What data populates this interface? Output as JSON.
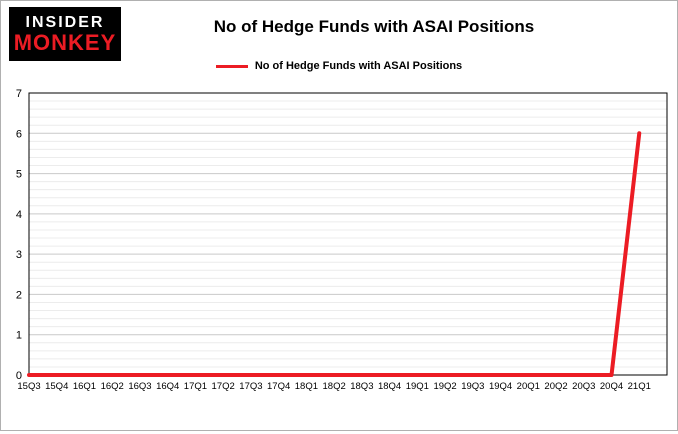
{
  "logo": {
    "line1": "INSIDER",
    "line2": "MONKEY"
  },
  "title": "No of Hedge Funds with ASAI Positions",
  "legend": {
    "label": "No of Hedge Funds with ASAI Positions",
    "color": "#ec1c24"
  },
  "chart_data": {
    "type": "line",
    "title": "No of Hedge Funds with ASAI Positions",
    "categories": [
      "15Q3",
      "15Q4",
      "16Q1",
      "16Q2",
      "16Q3",
      "16Q4",
      "17Q1",
      "17Q2",
      "17Q3",
      "17Q4",
      "18Q1",
      "18Q2",
      "18Q3",
      "18Q4",
      "19Q1",
      "19Q2",
      "19Q3",
      "19Q4",
      "20Q1",
      "20Q2",
      "20Q3",
      "20Q4",
      "21Q1"
    ],
    "series": [
      {
        "name": "No of Hedge Funds with ASAI Positions",
        "color": "#ec1c24",
        "values": [
          0,
          0,
          0,
          0,
          0,
          0,
          0,
          0,
          0,
          0,
          0,
          0,
          0,
          0,
          0,
          0,
          0,
          0,
          0,
          0,
          0,
          0,
          6
        ]
      }
    ],
    "xlabel": "",
    "ylabel": "",
    "ylim": [
      0,
      7
    ],
    "ytick_step": 1,
    "minor_grid_step": 0.2,
    "grid": true,
    "legend_position": "top",
    "colors": {
      "major_grid": "#c9c9c9",
      "minor_grid": "#ececec",
      "plot_border": "#000000",
      "text": "#000000"
    }
  }
}
